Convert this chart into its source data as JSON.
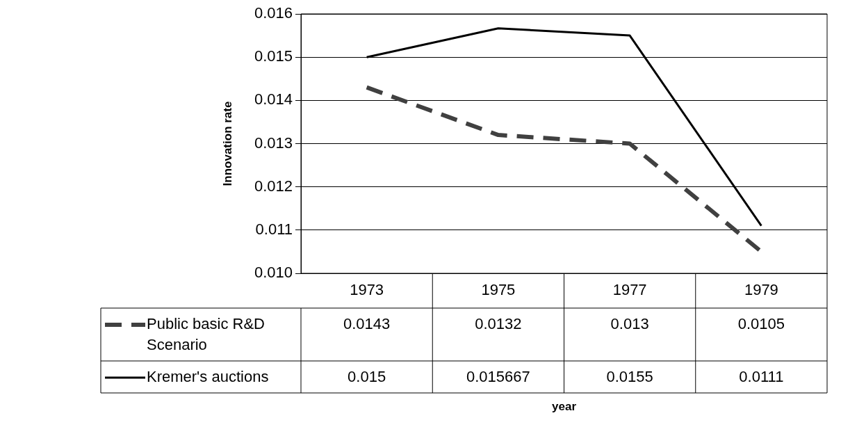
{
  "chart_data": {
    "type": "line",
    "annotations": [
      "year"
    ],
    "ylabel": "Innovation rate",
    "categories": [
      "1973",
      "1975",
      "1977",
      "1979"
    ],
    "series": [
      {
        "name": "Public basic R&D Scenario",
        "color": "#404040",
        "line_style": "dashed",
        "values": [
          0.0143,
          0.0132,
          0.013,
          0.0105
        ]
      },
      {
        "name": "Kremer's auctions",
        "color": "#000000",
        "line_style": "solid",
        "values": [
          0.015,
          0.015667,
          0.0155,
          0.0111
        ]
      }
    ],
    "ylim": [
      0.01,
      0.016
    ],
    "yticks": [
      {
        "value": 0.01,
        "label": "0.010"
      },
      {
        "value": 0.011,
        "label": "0.011"
      },
      {
        "value": 0.012,
        "label": "0.012"
      },
      {
        "value": 0.013,
        "label": "0.013"
      },
      {
        "value": 0.014,
        "label": "0.014"
      },
      {
        "value": 0.015,
        "label": "0.015"
      },
      {
        "value": 0.016,
        "label": "0.016"
      }
    ],
    "grid": "y",
    "legend": "bottom",
    "marker": "none",
    "data_labels": true
  }
}
